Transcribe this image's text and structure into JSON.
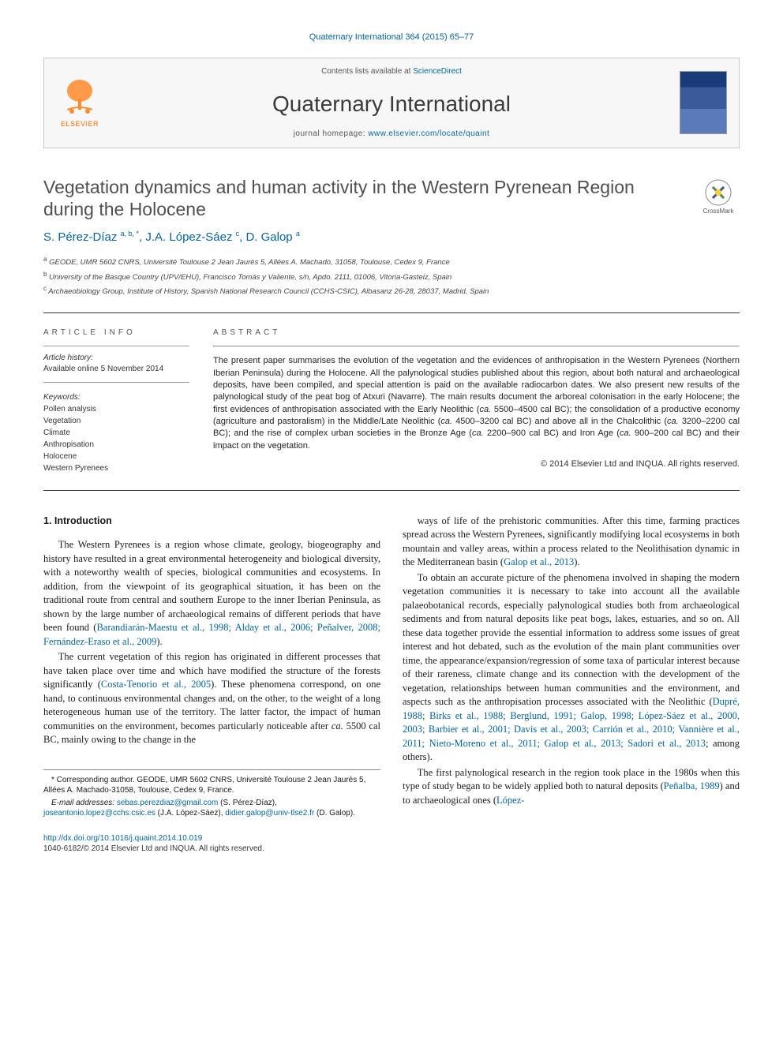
{
  "citation": "Quaternary International 364 (2015) 65–77",
  "header": {
    "contents_prefix": "Contents lists available at ",
    "contents_link": "ScienceDirect",
    "journal": "Quaternary International",
    "homepage_prefix": "journal homepage: ",
    "homepage_url": "www.elsevier.com/locate/quaint",
    "publisher": "ELSEVIER"
  },
  "crossmark": "CrossMark",
  "title": "Vegetation dynamics and human activity in the Western Pyrenean Region during the Holocene",
  "authors_html": "S. Pérez-Díaz <sup>a, b, *</sup>, J.A. López-Sáez <sup>c</sup>, D. Galop <sup>a</sup>",
  "affiliations": [
    "a GEODE, UMR 5602 CNRS, Université Toulouse 2 Jean Jaurès 5, Allées A. Machado, 31058, Toulouse, Cedex 9, France",
    "b University of the Basque Country (UPV/EHU), Francisco Tomás y Valiente, s/n, Apdo. 2111, 01006, Vitoria-Gasteiz, Spain",
    "c Archaeobiology Group, Institute of History, Spanish National Research Council (CCHS-CSIC), Albasanz 26-28, 28037, Madrid, Spain"
  ],
  "article_info": {
    "head": "ARTICLE INFO",
    "history_label": "Article history:",
    "history_text": "Available online 5 November 2014",
    "keywords_label": "Keywords:",
    "keywords": [
      "Pollen analysis",
      "Vegetation",
      "Climate",
      "Anthropisation",
      "Holocene",
      "Western Pyrenees"
    ]
  },
  "abstract": {
    "head": "ABSTRACT",
    "text": "The present paper summarises the evolution of the vegetation and the evidences of anthropisation in the Western Pyrenees (Northern Iberian Peninsula) during the Holocene. All the palynological studies published about this region, about both natural and archaeological deposits, have been compiled, and special attention is paid on the available radiocarbon dates. We also present new results of the palynological study of the peat bog of Atxuri (Navarre). The main results document the arboreal colonisation in the early Holocene; the first evidences of anthropisation associated with the Early Neolithic (ca. 5500–4500 cal BC); the consolidation of a productive economy (agriculture and pastoralism) in the Middle/Late Neolithic (ca. 4500–3200 cal BC) and above all in the Chalcolithic (ca. 3200–2200 cal BC); and the rise of complex urban societies in the Bronze Age (ca. 2200–900 cal BC) and Iron Age (ca. 900–200 cal BC) and their impact on the vegetation.",
    "copyright": "© 2014 Elsevier Ltd and INQUA. All rights reserved."
  },
  "intro": {
    "heading": "1.  Introduction",
    "p1_a": "The Western Pyrenees is a region whose climate, geology, biogeography and history have resulted in a great environmental heterogeneity and biological diversity, with a noteworthy wealth of species, biological communities and ecosystems. In addition, from the viewpoint of its geographical situation, it has been on the traditional route from central and southern Europe to the inner Iberian Peninsula, as shown by the large number of archaeological remains of different periods that have been found (",
    "p1_cite": "Barandiarán-Maestu et al., 1998; Alday et al., 2006; Peñalver, 2008; Fernández-Eraso et al., 2009",
    "p1_b": ").",
    "p2_a": "The current vegetation of this region has originated in different processes that have taken place over time and which have modified the structure of the forests significantly (",
    "p2_cite": "Costa-Tenorio et al., 2005",
    "p2_b": "). These phenomena correspond, on one hand, to continuous environmental changes and, on the other, to the weight of a long heterogeneous human use of the territory. The latter factor, the impact of human communities on the environment, becomes particularly noticeable after ",
    "p2_c": "ca.",
    "p2_d": " 5500 cal BC, mainly owing to the change in the",
    "p3_a": "ways of life of the prehistoric communities. After this time, farming practices spread across the Western Pyrenees, significantly modifying local ecosystems in both mountain and valley areas, within a process related to the Neolithisation dynamic in the Mediterranean basin (",
    "p3_cite": "Galop et al., 2013",
    "p3_b": ").",
    "p4_a": "To obtain an accurate picture of the phenomena involved in shaping the modern vegetation communities it is necessary to take into account all the available palaeobotanical records, especially palynological studies both from archaeological sediments and from natural deposits like peat bogs, lakes, estuaries, and so on. All these data together provide the essential information to address some issues of great interest and hot debated, such as the evolution of the main plant communities over time, the appearance/expansion/regression of some taxa of particular interest because of their rareness, climate change and its connection with the development of the vegetation, relationships between human communities and the environment, and aspects such as the anthropisation processes associated with the Neolithic (",
    "p4_cite": "Dupré, 1988; Birks et al., 1988; Berglund, 1991; Galop, 1998; López-Sáez et al., 2000, 2003; Barbier et al., 2001; Davis et al., 2003; Carrión et al., 2010; Vannière et al., 2011; Nieto-Moreno et al., 2011; Galop et al., 2013; Sadori et al., 2013",
    "p4_b": "; among others).",
    "p5_a": "The first palynological research in the region took place in the 1980s when this type of study began to be widely applied both to natural deposits (",
    "p5_cite1": "Peñalba, 1989",
    "p5_mid": ") and to archaeological ones (",
    "p5_cite2": "López-"
  },
  "footnote": {
    "corr_a": "* Corresponding author. GEODE, UMR 5602 CNRS, Université Toulouse 2 Jean Jaurès 5, Allées A. Machado-31058, Toulouse, Cedex 9, France.",
    "email_label": "E-mail addresses:",
    "emails": [
      {
        "addr": "sebas.perezdiaz@gmail.com",
        "who": "(S. Pérez-Díaz)"
      },
      {
        "addr": "joseantonio.lopez@cchs.csic.es",
        "who": "(J.A. López-Sáez)"
      },
      {
        "addr": "didier.galop@univ-tlse2.fr",
        "who": "(D. Galop)"
      }
    ]
  },
  "bottom": {
    "doi": "http://dx.doi.org/10.1016/j.quaint.2014.10.019",
    "issn": "1040-6182/© 2014 Elsevier Ltd and INQUA. All rights reserved."
  }
}
